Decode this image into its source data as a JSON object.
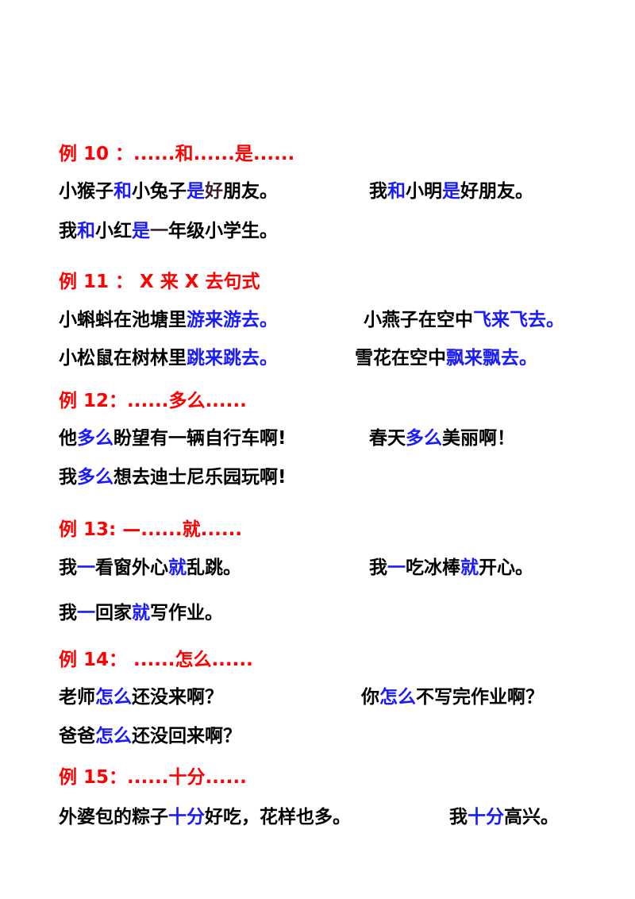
{
  "colors": {
    "heading": "#ff0000",
    "highlight": "#1a1aff",
    "text": "#000000",
    "dark": "#3b1f2a"
  },
  "sections": [
    {
      "heading": "例 10 ：......和......是......",
      "sentences": [
        [
          {
            "t": "小猴子",
            "s": "plain"
          },
          {
            "t": "和",
            "s": "hl"
          },
          {
            "t": "小兔子",
            "s": "plain"
          },
          {
            "t": "是",
            "s": "hl"
          },
          {
            "t": "好",
            "s": "dark"
          },
          {
            "t": "朋友。",
            "s": "plain"
          }
        ],
        [
          {
            "t": "我",
            "s": "plain"
          },
          {
            "t": "和",
            "s": "hl"
          },
          {
            "t": "小明",
            "s": "plain"
          },
          {
            "t": "是",
            "s": "hl"
          },
          {
            "t": "好朋友。",
            "s": "plain"
          }
        ],
        [
          {
            "t": "我",
            "s": "plain"
          },
          {
            "t": "和",
            "s": "hl"
          },
          {
            "t": "小红",
            "s": "plain"
          },
          {
            "t": "是",
            "s": "hl"
          },
          {
            "t": "一",
            "s": "dark"
          },
          {
            "t": "年级小学生。",
            "s": "plain"
          }
        ]
      ]
    },
    {
      "heading": "例 11 ： X 来 X 去句式",
      "sentences": [
        [
          {
            "t": "小蝌蚪在池塘里",
            "s": "plain"
          },
          {
            "t": "游来游去。",
            "s": "hl"
          }
        ],
        [
          {
            "t": "小燕子在空中",
            "s": "plain"
          },
          {
            "t": "飞来飞去。",
            "s": "hl"
          }
        ],
        [
          {
            "t": "小松鼠在树林里",
            "s": "plain"
          },
          {
            "t": "跳来跳去。",
            "s": "hl"
          }
        ],
        [
          {
            "t": "雪花在空中",
            "s": "plain"
          },
          {
            "t": "飘来飘去。",
            "s": "hl"
          }
        ]
      ]
    },
    {
      "heading": "例 12：......多么......",
      "sentences": [
        [
          {
            "t": "他",
            "s": "plain"
          },
          {
            "t": "多么",
            "s": "hl"
          },
          {
            "t": "盼望有一辆自行车啊!",
            "s": "plain"
          }
        ],
        [
          {
            "t": "春天",
            "s": "plain"
          },
          {
            "t": "多么",
            "s": "hl"
          },
          {
            "t": "美丽啊！",
            "s": "plain"
          }
        ],
        [
          {
            "t": "我",
            "s": "plain"
          },
          {
            "t": "多么",
            "s": "hl"
          },
          {
            "t": "想去迪士尼乐园玩啊!",
            "s": "plain"
          }
        ]
      ]
    },
    {
      "heading": "例 13: —......就......",
      "sentences": [
        [
          {
            "t": "我",
            "s": "plain"
          },
          {
            "t": "一",
            "s": "hl"
          },
          {
            "t": "看窗外心",
            "s": "plain"
          },
          {
            "t": "就",
            "s": "hl"
          },
          {
            "t": "乱跳。",
            "s": "plain"
          }
        ],
        [
          {
            "t": "我",
            "s": "plain"
          },
          {
            "t": "一",
            "s": "hl"
          },
          {
            "t": "吃冰棒",
            "s": "plain"
          },
          {
            "t": "就",
            "s": "hl"
          },
          {
            "t": "开心。",
            "s": "plain"
          }
        ],
        [
          {
            "t": "我",
            "s": "plain"
          },
          {
            "t": "一",
            "s": "hl"
          },
          {
            "t": "回家",
            "s": "plain"
          },
          {
            "t": "就",
            "s": "hl"
          },
          {
            "t": "写作业。",
            "s": "plain"
          }
        ]
      ]
    },
    {
      "heading": "例 14： ......怎么......",
      "sentences": [
        [
          {
            "t": "老师",
            "s": "plain"
          },
          {
            "t": "怎么",
            "s": "hl"
          },
          {
            "t": "还没来啊？",
            "s": "plain"
          }
        ],
        [
          {
            "t": "你",
            "s": "plain"
          },
          {
            "t": "怎么",
            "s": "hl"
          },
          {
            "t": "不写完作业啊？",
            "s": "plain"
          }
        ],
        [
          {
            "t": "爸爸",
            "s": "plain"
          },
          {
            "t": "怎么",
            "s": "hl"
          },
          {
            "t": "还没回来啊？",
            "s": "plain"
          }
        ]
      ]
    },
    {
      "heading": "例 15：......十分......",
      "sentences": [
        [
          {
            "t": "外婆包的粽子",
            "s": "plain"
          },
          {
            "t": "十分",
            "s": "hl"
          },
          {
            "t": "好吃，花样也多。",
            "s": "plain"
          }
        ],
        [
          {
            "t": "我",
            "s": "plain"
          },
          {
            "t": "十分",
            "s": "hl"
          },
          {
            "t": "高兴。",
            "s": "plain"
          }
        ]
      ]
    }
  ]
}
